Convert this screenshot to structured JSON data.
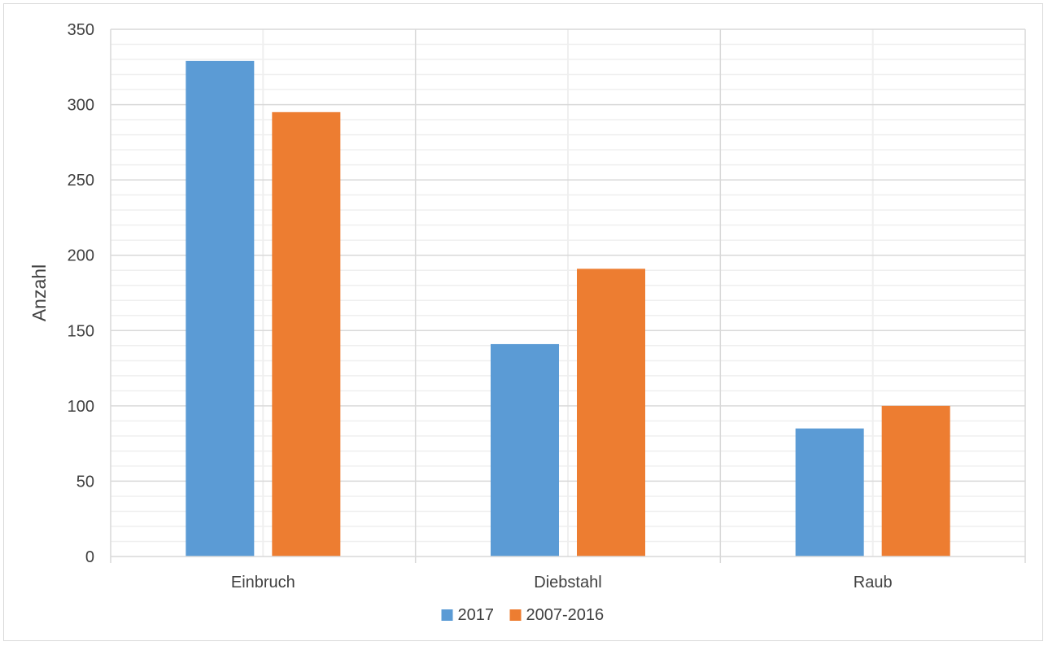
{
  "chart_data": {
    "type": "bar",
    "categories": [
      "Einbruch",
      "Diebstahl",
      "Raub"
    ],
    "series": [
      {
        "name": "2017",
        "values": [
          329,
          141,
          85
        ],
        "color": "#5b9bd5"
      },
      {
        "name": "2007-2016",
        "values": [
          295,
          191,
          100
        ],
        "color": "#ed7d31"
      }
    ],
    "ylabel": "Anzahl",
    "xlabel": "",
    "ylim": [
      0,
      350
    ],
    "yticks": [
      "0",
      "50",
      "100",
      "150",
      "200",
      "250",
      "300",
      "350"
    ],
    "grid": true,
    "minor_grid": true,
    "legend_position": "bottom"
  }
}
